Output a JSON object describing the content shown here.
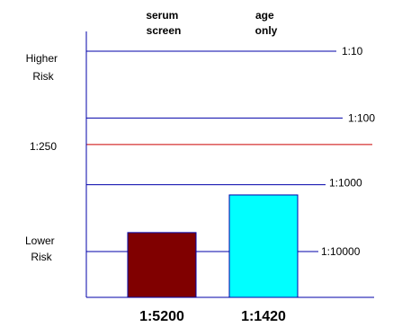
{
  "chart_data": {
    "type": "bar",
    "scale": "log",
    "categories": [
      "serum screen",
      "age only"
    ],
    "category_header_lines": [
      [
        "serum",
        "screen"
      ],
      [
        "age",
        "only"
      ]
    ],
    "values": [
      5200,
      1420
    ],
    "value_labels": [
      "1:5200",
      "1:1420"
    ],
    "bar_colors": [
      "#800000",
      "#00ffff"
    ],
    "reference_lines": [
      {
        "value": 10,
        "label": "1:10",
        "color": "#0000aa"
      },
      {
        "value": 100,
        "label": "1:100",
        "color": "#0000aa"
      },
      {
        "value": 250,
        "label": "1:250",
        "color": "#cc0000"
      },
      {
        "value": 1000,
        "label": "1:1000",
        "color": "#0000aa"
      },
      {
        "value": 10000,
        "label": "1:10000",
        "color": "#0000aa"
      }
    ],
    "left_labels": {
      "top": [
        "Higher",
        "Risk"
      ],
      "cutoff": "1:250",
      "bottom": [
        "Lower",
        "Risk"
      ]
    },
    "axis_color": "#0000aa",
    "bar_outline": "#0000aa",
    "grid": false,
    "legend": "none"
  }
}
